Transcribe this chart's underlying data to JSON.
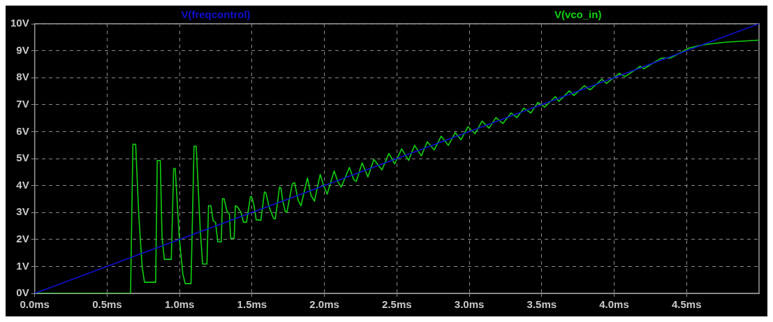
{
  "chart_data": {
    "type": "line",
    "grid": true,
    "marker": "none",
    "line_style": "solid",
    "xlim": [
      0,
      5
    ],
    "ylim": [
      0,
      10
    ],
    "xticks": [
      {
        "value": 0,
        "label": "0.0ms"
      },
      {
        "value": 0.5,
        "label": "0.5ms"
      },
      {
        "value": 1,
        "label": "1.0ms"
      },
      {
        "value": 1.5,
        "label": "1.5ms"
      },
      {
        "value": 2,
        "label": "2.0ms"
      },
      {
        "value": 2.5,
        "label": "2.5ms"
      },
      {
        "value": 3,
        "label": "3.0ms"
      },
      {
        "value": 3.5,
        "label": "3.5ms"
      },
      {
        "value": 4,
        "label": "4.0ms"
      },
      {
        "value": 4.5,
        "label": "4.5ms"
      }
    ],
    "yticks": [
      {
        "value": 0,
        "label": "0V"
      },
      {
        "value": 1,
        "label": "1V"
      },
      {
        "value": 2,
        "label": "2V"
      },
      {
        "value": 3,
        "label": "3V"
      },
      {
        "value": 4,
        "label": "4V"
      },
      {
        "value": 5,
        "label": "5V"
      },
      {
        "value": 6,
        "label": "6V"
      },
      {
        "value": 7,
        "label": "7V"
      },
      {
        "value": 8,
        "label": "8V"
      },
      {
        "value": 9,
        "label": "9V"
      },
      {
        "value": 10,
        "label": "10V"
      }
    ],
    "series": [
      {
        "name": "V(freqcontrol)",
        "color": "#1010d0",
        "x": [
          0,
          5
        ],
        "values": [
          0,
          10
        ]
      },
      {
        "name": "V(vco_in)",
        "color": "#10d010",
        "x": [
          0,
          0.66,
          0.662,
          0.67,
          0.678,
          0.697,
          0.718,
          0.742,
          0.758,
          0.835,
          0.846,
          0.867,
          0.879,
          0.895,
          0.943,
          0.959,
          0.97,
          0.999,
          1.023,
          1.039,
          1.079,
          1.1,
          1.115,
          1.143,
          1.159,
          1.189,
          1.2,
          1.216,
          1.232,
          1.248,
          1.264,
          1.288,
          1.296,
          1.307,
          1.328,
          1.344,
          1.353,
          1.377,
          1.385,
          1.401,
          1.425,
          1.441,
          1.462,
          1.489,
          1.497,
          1.513,
          1.529,
          1.561,
          1.586,
          1.597,
          1.618,
          1.65,
          1.661,
          1.69,
          1.701,
          1.711,
          1.73,
          1.741,
          1.778,
          1.794,
          1.818,
          1.838,
          1.883,
          1.907,
          1.931,
          1.971,
          1.995,
          2.019,
          2.067,
          2.092,
          2.116,
          2.172,
          2.204,
          2.22,
          2.26,
          2.3,
          2.341,
          2.397,
          2.445,
          2.485,
          2.533,
          2.581,
          2.622,
          2.669,
          2.71,
          2.758,
          2.806,
          2.855,
          2.903,
          2.943,
          2.991,
          3.04,
          3.088,
          3.136,
          3.184,
          3.232,
          3.288,
          3.329,
          3.377,
          3.425,
          3.473,
          3.521,
          3.594,
          3.618,
          3.69,
          3.722,
          3.794,
          3.834,
          3.915,
          3.947,
          4.035,
          4.075,
          4.18,
          4.204,
          4.324,
          4.389,
          4.517,
          4.614,
          4.774,
          4.998
        ],
        "values": [
          0,
          0,
          0,
          2.86,
          5.53,
          5.53,
          2.95,
          0.96,
          0.41,
          0.41,
          4.93,
          4.93,
          2.08,
          1.26,
          1.26,
          4.63,
          4.63,
          2.0,
          0.71,
          0.36,
          0.36,
          5.46,
          5.46,
          2.34,
          1.09,
          1.09,
          3.25,
          3.25,
          2.69,
          2.64,
          1.91,
          1.91,
          3.51,
          3.51,
          3.03,
          2.95,
          2.04,
          2.04,
          3.25,
          3.2,
          2.99,
          2.64,
          2.64,
          3.59,
          3.59,
          3.29,
          2.73,
          2.71,
          3.76,
          3.72,
          3.2,
          2.77,
          2.76,
          3.94,
          3.89,
          3.46,
          3.03,
          3.01,
          4.06,
          4.11,
          3.46,
          3.25,
          4.28,
          3.64,
          3.42,
          4.41,
          3.98,
          3.68,
          4.54,
          4.15,
          3.94,
          4.67,
          4.2,
          4.15,
          4.84,
          4.32,
          4.97,
          4.58,
          5.19,
          4.8,
          5.36,
          4.93,
          5.49,
          5.1,
          5.62,
          5.32,
          5.83,
          5.49,
          5.96,
          5.7,
          6.18,
          5.92,
          6.39,
          6.13,
          6.52,
          6.3,
          6.69,
          6.52,
          6.87,
          6.69,
          7.08,
          6.91,
          7.3,
          7.12,
          7.51,
          7.34,
          7.7,
          7.55,
          7.94,
          7.79,
          8.16,
          8.04,
          8.42,
          8.33,
          8.72,
          8.73,
          9.1,
          9.22,
          9.32,
          9.39
        ]
      }
    ]
  }
}
